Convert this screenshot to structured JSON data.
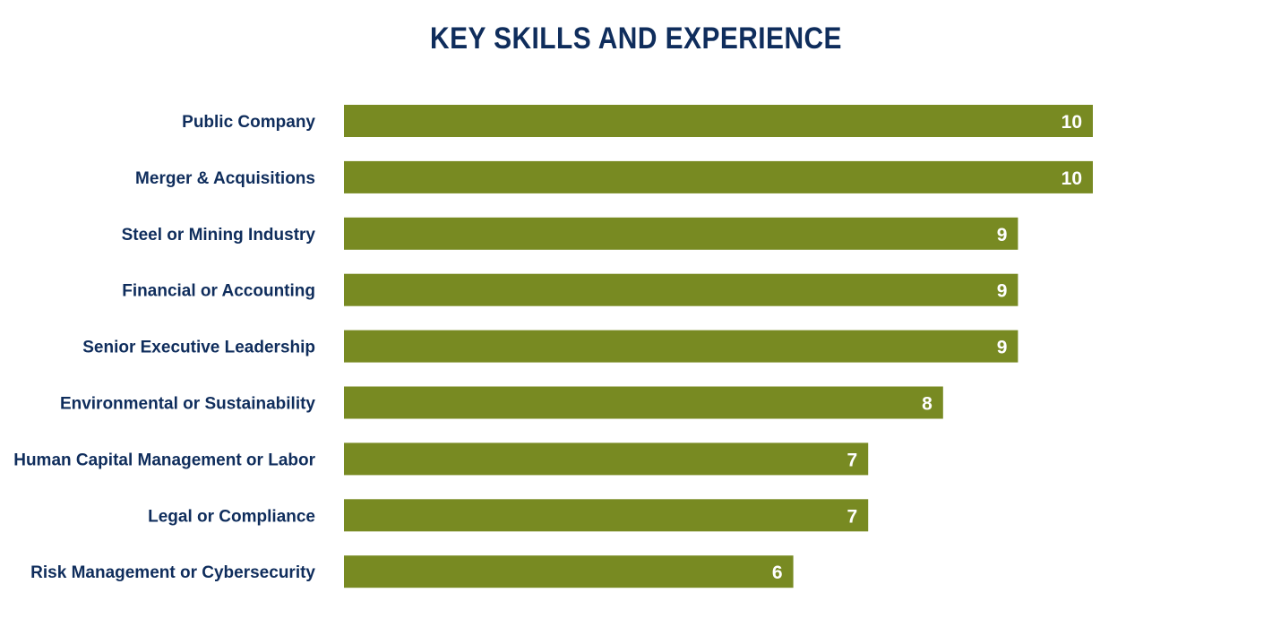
{
  "colors": {
    "bar": "#788a22",
    "text": "#0f2d5c",
    "value_text": "#ffffff"
  },
  "chart_data": {
    "type": "bar",
    "orientation": "horizontal",
    "title": "KEY SKILLS AND EXPERIENCE",
    "categories": [
      "Public Company",
      "Merger & Acquisitions",
      "Steel or Mining Industry",
      "Financial or Accounting",
      "Senior Executive Leadership",
      "Environmental or Sustainability",
      "Human Capital Management or Labor",
      "Legal or Compliance",
      "Risk Management or Cybersecurity"
    ],
    "values": [
      10,
      10,
      9,
      9,
      9,
      8,
      7,
      7,
      6
    ],
    "xlim": [
      0,
      10
    ],
    "grid": false,
    "legend": "none",
    "data_labels": "inside-end"
  }
}
